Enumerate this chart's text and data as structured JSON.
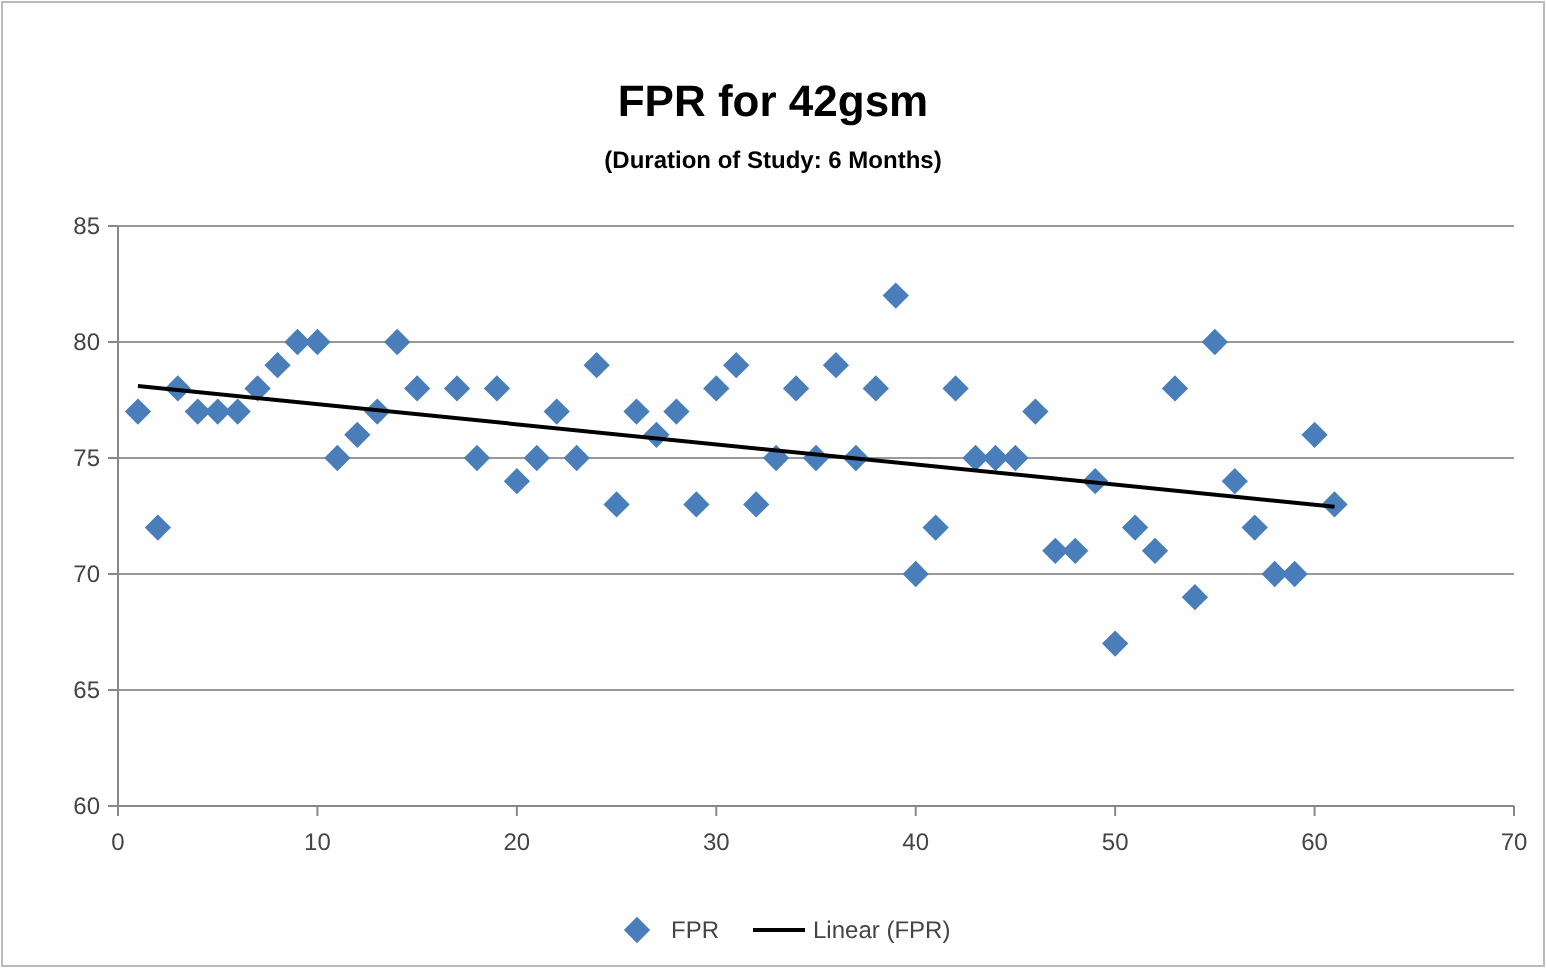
{
  "chart_data": {
    "type": "scatter",
    "title": "FPR for 42gsm",
    "subtitle": "(Duration of Study: 6 Months)",
    "x": [
      1,
      2,
      3,
      4,
      5,
      6,
      7,
      8,
      9,
      10,
      11,
      12,
      13,
      14,
      15,
      17,
      18,
      19,
      20,
      21,
      22,
      23,
      24,
      25,
      26,
      27,
      28,
      29,
      30,
      31,
      32,
      33,
      34,
      35,
      36,
      37,
      38,
      39,
      40,
      41,
      42,
      43,
      44,
      45,
      46,
      47,
      48,
      49,
      50,
      51,
      52,
      53,
      54,
      55,
      56,
      57,
      58,
      59,
      60,
      61
    ],
    "series": [
      {
        "name": "FPR",
        "marker": "diamond",
        "color": "#4a7ebb",
        "values": [
          77,
          72,
          78,
          77,
          77,
          77,
          78,
          79,
          80,
          80,
          75,
          76,
          77,
          80,
          78,
          78,
          75,
          78,
          74,
          75,
          77,
          75,
          79,
          73,
          77,
          76,
          77,
          73,
          78,
          79,
          73,
          75,
          78,
          75,
          79,
          75,
          78,
          82,
          70,
          72,
          78,
          75,
          75,
          75,
          77,
          71,
          71,
          74,
          67,
          72,
          71,
          78,
          69,
          80,
          74,
          72,
          70,
          70,
          76,
          73
        ]
      },
      {
        "name": "Linear (FPR)",
        "type": "line",
        "color": "#000000",
        "x": [
          1,
          61
        ],
        "values": [
          78.1,
          72.9
        ]
      }
    ],
    "xlim": [
      0,
      70
    ],
    "xticks": [
      0,
      10,
      20,
      30,
      40,
      50,
      60,
      70
    ],
    "ylim": [
      60,
      85
    ],
    "yticks": [
      60,
      65,
      70,
      75,
      80,
      85
    ],
    "grid": "y",
    "legend": "bottom"
  }
}
